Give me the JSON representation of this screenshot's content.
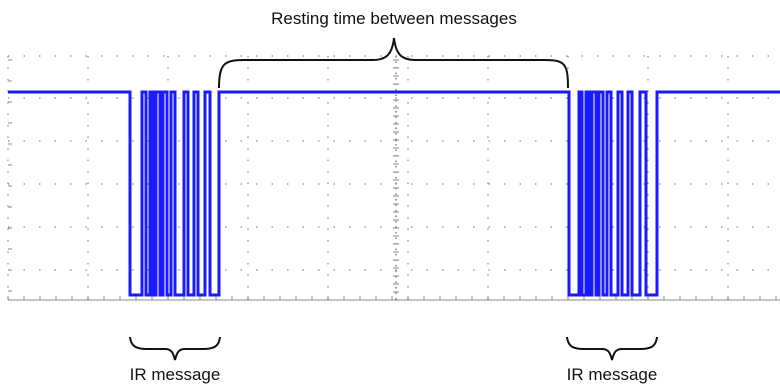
{
  "annotations": {
    "resting": "Resting time between messages",
    "ir_left": "IR message",
    "ir_right": "IR message"
  },
  "colors": {
    "signal": "#1a1aff",
    "grid": "#8a8a8a",
    "text": "#111111",
    "background": "#ffffff"
  }
}
